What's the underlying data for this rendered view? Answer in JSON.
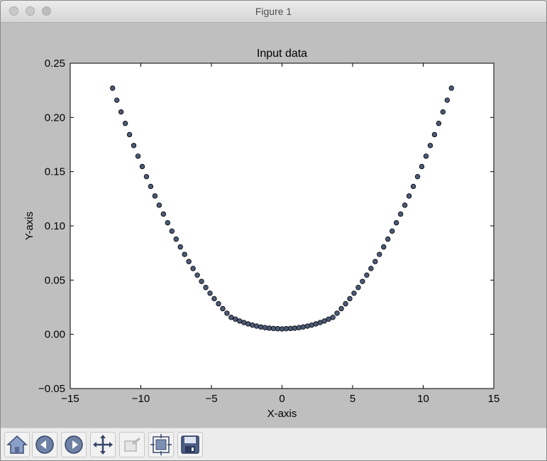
{
  "window": {
    "title": "Figure 1"
  },
  "toolbar": {
    "buttons": [
      {
        "name": "home-button",
        "icon": "home-icon"
      },
      {
        "name": "back-button",
        "icon": "arrow-left-icon"
      },
      {
        "name": "forward-button",
        "icon": "arrow-right-icon"
      },
      {
        "name": "pan-button",
        "icon": "move-icon"
      },
      {
        "name": "zoom-button",
        "icon": "zoom-rect-icon"
      },
      {
        "name": "subplots-button",
        "icon": "subplots-icon"
      },
      {
        "name": "save-button",
        "icon": "save-icon"
      }
    ]
  },
  "chart_data": {
    "type": "scatter",
    "title": "Input data",
    "xlabel": "X-axis",
    "ylabel": "Y-axis",
    "xlim": [
      -15,
      15
    ],
    "ylim": [
      -0.05,
      0.25
    ],
    "xticks": [
      -15,
      -10,
      -5,
      0,
      5,
      10,
      15
    ],
    "xtick_labels": [
      "−15",
      "−10",
      "−5",
      "0",
      "5",
      "10",
      "15"
    ],
    "yticks": [
      -0.05,
      0.0,
      0.05,
      0.1,
      0.15,
      0.2,
      0.25
    ],
    "ytick_labels": [
      "−0.05",
      "0.00",
      "0.05",
      "0.10",
      "0.15",
      "0.20",
      "0.25"
    ],
    "grid": false,
    "marker_color": "#4c5a78",
    "series": [
      {
        "x": [
          -12.0,
          -11.7,
          -11.4,
          -11.1,
          -10.8,
          -10.5,
          -10.2,
          -9.9,
          -9.6,
          -9.3,
          -9.0,
          -8.7,
          -8.4,
          -8.1,
          -7.8,
          -7.5,
          -7.2,
          -6.9,
          -6.6,
          -6.3,
          -6.0,
          -5.7,
          -5.4,
          -5.1,
          -4.8,
          -4.5,
          -4.2,
          -3.9,
          -3.6,
          -3.3,
          -3.0,
          -2.7,
          -2.4,
          -2.1,
          -1.8,
          -1.5,
          -1.2,
          -0.9,
          -0.6,
          -0.3,
          0.0,
          0.3,
          0.6,
          0.9,
          1.2,
          1.5,
          1.8,
          2.1,
          2.4,
          2.7,
          3.0,
          3.3,
          3.6,
          3.9,
          4.2,
          4.5,
          4.8,
          5.1,
          5.4,
          5.7,
          6.0,
          6.3,
          6.6,
          6.9,
          7.2,
          7.5,
          7.8,
          8.1,
          8.4,
          8.7,
          9.0,
          9.3,
          9.6,
          9.9,
          10.2,
          10.5,
          10.8,
          11.1,
          11.4,
          11.7,
          12.0
        ],
        "y": [
          0.227,
          0.2159,
          0.2051,
          0.1945,
          0.1842,
          0.1741,
          0.1643,
          0.1547,
          0.1454,
          0.1364,
          0.1276,
          0.1191,
          0.1109,
          0.1029,
          0.0952,
          0.0878,
          0.0806,
          0.0737,
          0.0671,
          0.0607,
          0.0546,
          0.0488,
          0.0432,
          0.0379,
          0.0329,
          0.0282,
          0.0237,
          0.0195,
          0.0156,
          0.014,
          0.0123,
          0.0109,
          0.0096,
          0.0085,
          0.0076,
          0.0068,
          0.0062,
          0.0057,
          0.0054,
          0.0052,
          0.005,
          0.0052,
          0.0054,
          0.0057,
          0.0062,
          0.0068,
          0.0076,
          0.0085,
          0.0096,
          0.0109,
          0.0123,
          0.014,
          0.0156,
          0.0195,
          0.0237,
          0.0282,
          0.0329,
          0.0379,
          0.0432,
          0.0488,
          0.0546,
          0.0607,
          0.0671,
          0.0737,
          0.0806,
          0.0878,
          0.0952,
          0.1029,
          0.1109,
          0.1191,
          0.1276,
          0.1364,
          0.1454,
          0.1547,
          0.1643,
          0.1741,
          0.1842,
          0.1945,
          0.2051,
          0.2159,
          0.227
        ]
      }
    ]
  }
}
